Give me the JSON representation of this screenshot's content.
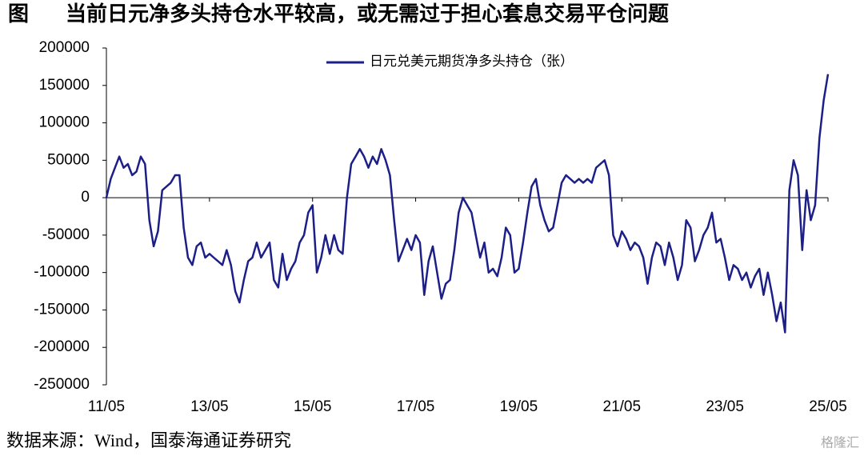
{
  "figure_label": "图",
  "source": "数据来源：Wind，国泰海通证券研究",
  "watermark": "格隆汇",
  "chart_data": {
    "type": "line",
    "title": "当前日元净多头持仓水平较高，或无需过于担心套息交易平仓问题",
    "categories": [
      "11/05",
      null,
      null,
      null,
      null,
      null,
      null,
      null,
      null,
      null,
      null,
      null,
      null,
      null,
      null,
      null,
      null,
      null,
      null,
      null,
      null,
      null,
      null,
      null,
      "13/05",
      null,
      null,
      null,
      null,
      null,
      null,
      null,
      null,
      null,
      null,
      null,
      null,
      null,
      null,
      null,
      null,
      null,
      null,
      null,
      null,
      null,
      null,
      null,
      "15/05",
      null,
      null,
      null,
      null,
      null,
      null,
      null,
      null,
      null,
      null,
      null,
      null,
      null,
      null,
      null,
      null,
      null,
      null,
      null,
      null,
      null,
      null,
      null,
      "17/05",
      null,
      null,
      null,
      null,
      null,
      null,
      null,
      null,
      null,
      null,
      null,
      null,
      null,
      null,
      null,
      null,
      null,
      null,
      null,
      null,
      null,
      null,
      null,
      "19/05",
      null,
      null,
      null,
      null,
      null,
      null,
      null,
      null,
      null,
      null,
      null,
      null,
      null,
      null,
      null,
      null,
      null,
      null,
      null,
      null,
      null,
      null,
      null,
      "21/05",
      null,
      null,
      null,
      null,
      null,
      null,
      null,
      null,
      null,
      null,
      null,
      null,
      null,
      null,
      null,
      null,
      null,
      null,
      null,
      null,
      null,
      null,
      null,
      "23/05",
      null,
      null,
      null,
      null,
      null,
      null,
      null,
      null,
      null,
      null,
      null,
      null,
      null,
      null,
      null,
      null,
      null,
      null,
      null,
      null,
      null,
      null,
      null,
      "25/05"
    ],
    "series": [
      {
        "name": "日元兑美元期货净多头持仓（张）",
        "color": "#1c1f87",
        "values": [
          0,
          25000,
          40000,
          55000,
          40000,
          45000,
          30000,
          35000,
          55000,
          45000,
          -30000,
          -65000,
          -45000,
          10000,
          15000,
          20000,
          30000,
          30000,
          -40000,
          -80000,
          -90000,
          -65000,
          -60000,
          -80000,
          -75000,
          -80000,
          -85000,
          -90000,
          -70000,
          -90000,
          -125000,
          -140000,
          -110000,
          -85000,
          -80000,
          -60000,
          -80000,
          -70000,
          -60000,
          -110000,
          -120000,
          -75000,
          -110000,
          -95000,
          -85000,
          -60000,
          -50000,
          -20000,
          -10000,
          -100000,
          -80000,
          -50000,
          -75000,
          -50000,
          -70000,
          -75000,
          0,
          45000,
          55000,
          65000,
          55000,
          40000,
          55000,
          45000,
          65000,
          50000,
          30000,
          -30000,
          -85000,
          -70000,
          -55000,
          -70000,
          -50000,
          -60000,
          -130000,
          -85000,
          -65000,
          -100000,
          -135000,
          -115000,
          -110000,
          -70000,
          -20000,
          0,
          -10000,
          -20000,
          -50000,
          -80000,
          -60000,
          -100000,
          -95000,
          -105000,
          -80000,
          -40000,
          -50000,
          -100000,
          -95000,
          -60000,
          -20000,
          15000,
          25000,
          -10000,
          -30000,
          -45000,
          -40000,
          -10000,
          20000,
          30000,
          25000,
          20000,
          25000,
          20000,
          25000,
          20000,
          40000,
          45000,
          50000,
          30000,
          -50000,
          -65000,
          -45000,
          -55000,
          -70000,
          -60000,
          -65000,
          -80000,
          -115000,
          -80000,
          -60000,
          -65000,
          -90000,
          -60000,
          -80000,
          -110000,
          -90000,
          -30000,
          -40000,
          -85000,
          -70000,
          -50000,
          -40000,
          -20000,
          -60000,
          -55000,
          -80000,
          -110000,
          -90000,
          -95000,
          -110000,
          -100000,
          -120000,
          -105000,
          -95000,
          -130000,
          -100000,
          -130000,
          -165000,
          -140000,
          -180000,
          10000,
          50000,
          30000,
          -70000,
          10000,
          -30000,
          -10000,
          80000,
          130000,
          165000
        ]
      }
    ],
    "ylim": [
      -250000,
      200000
    ],
    "yticks": [
      200000,
      150000,
      100000,
      50000,
      0,
      -50000,
      -100000,
      -150000,
      -200000,
      -250000
    ],
    "legend": "top"
  }
}
